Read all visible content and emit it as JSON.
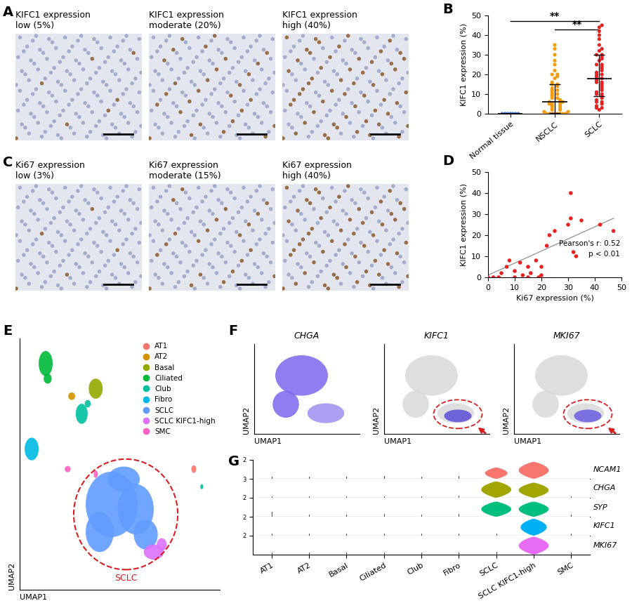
{
  "chart_data": [
    {
      "panel": "A",
      "type": "image",
      "images": [
        {
          "title_lines": [
            "KIFC1 expression",
            "low (5%)"
          ],
          "stain_percent": 5
        },
        {
          "title_lines": [
            "KIFC1 expression",
            "moderate (20%)"
          ],
          "stain_percent": 20
        },
        {
          "title_lines": [
            "KIFC1 expression",
            "high (40%)"
          ],
          "stain_percent": 40
        }
      ]
    },
    {
      "panel": "B",
      "type": "dot",
      "categories": [
        "Normal tissue",
        "NSCLC",
        "SCLC"
      ],
      "colors": [
        "#4a7cd9",
        "#f39c12",
        "#e8221f"
      ],
      "values": [
        [
          0,
          0,
          0,
          0,
          0,
          0,
          0
        ],
        [
          0,
          0,
          0,
          0,
          0,
          0,
          0,
          0,
          1,
          1,
          2,
          2,
          3,
          3,
          4,
          4,
          5,
          5,
          5,
          6,
          6,
          6,
          7,
          8,
          8,
          9,
          10,
          10,
          11,
          12,
          12,
          13,
          14,
          15,
          15,
          16,
          18,
          19,
          20,
          20,
          22,
          25,
          27,
          30,
          33,
          35
        ],
        [
          2,
          3,
          3,
          4,
          5,
          6,
          6,
          7,
          8,
          9,
          10,
          10,
          11,
          12,
          13,
          14,
          15,
          16,
          16,
          17,
          18,
          18,
          19,
          20,
          20,
          21,
          22,
          23,
          24,
          25,
          25,
          27,
          28,
          29,
          30,
          30,
          32,
          33,
          35,
          38,
          40,
          42,
          44,
          45
        ]
      ],
      "center": [
        0,
        6,
        18
      ],
      "error_low": [
        0,
        0.5,
        9
      ],
      "error_high": [
        0,
        15,
        30
      ],
      "significance": [
        {
          "pair": [
            0,
            2
          ],
          "y": 47,
          "label": "**"
        },
        {
          "pair": [
            1,
            2
          ],
          "y": 43,
          "label": "**"
        }
      ],
      "ylabel": "KIFC1 expression (%)",
      "ylim": [
        0,
        50
      ],
      "yticks": [
        0,
        10,
        20,
        30,
        40,
        50
      ]
    },
    {
      "panel": "C",
      "type": "image",
      "images": [
        {
          "title_lines": [
            "Ki67 expression",
            "low (3%)"
          ],
          "stain_percent": 3
        },
        {
          "title_lines": [
            "Ki67 expression",
            "moderate (15%)"
          ],
          "stain_percent": 15
        },
        {
          "title_lines": [
            "Ki67 expression",
            "high (40%)"
          ],
          "stain_percent": 40
        }
      ]
    },
    {
      "panel": "D",
      "type": "scatter",
      "color": "#e8221f",
      "x": [
        0,
        2,
        4,
        5,
        7,
        8,
        10,
        10,
        12,
        13,
        15,
        15,
        16,
        18,
        19,
        20,
        20,
        22,
        23,
        25,
        30,
        31,
        31,
        32,
        33,
        35,
        42,
        47
      ],
      "y": [
        0,
        0,
        0,
        2,
        5,
        8,
        3,
        0,
        7,
        1,
        0,
        5,
        2,
        8,
        0,
        1,
        5,
        15,
        20,
        22,
        25,
        40,
        28,
        12,
        10,
        27,
        25,
        22
      ],
      "fit": {
        "x": [
          0,
          47
        ],
        "y": [
          1,
          28
        ]
      },
      "annotations": [
        "Pearson's r: 0.52",
        "p < 0.01"
      ],
      "xlabel": "Ki67 expression (%)",
      "ylabel": "KIFC1 expression (%)",
      "xlim": [
        0,
        50
      ],
      "xticks": [
        0,
        10,
        20,
        30,
        40,
        50
      ],
      "ylim": [
        0,
        50
      ],
      "yticks": [
        0,
        10,
        20,
        30,
        40,
        50
      ]
    },
    {
      "panel": "E",
      "type": "umap",
      "xlabel": "UMAP1",
      "ylabel": "UMAP2",
      "tick_labels": false,
      "xlim": [
        0,
        10
      ],
      "ylim": [
        0,
        10
      ],
      "legend": "upper right",
      "series": [
        {
          "name": "AT1",
          "color": "#F8766D",
          "ellipses": [
            [
              8.7,
              4.8,
              0.25,
              0.3
            ]
          ]
        },
        {
          "name": "AT2",
          "color": "#D39200",
          "ellipses": [
            [
              2.6,
              7.7,
              0.35,
              0.3
            ]
          ]
        },
        {
          "name": "Basal",
          "color": "#93AA00",
          "ellipses": [
            [
              3.8,
              8.0,
              0.7,
              0.8
            ]
          ]
        },
        {
          "name": "Ciliated",
          "color": "#00BA38",
          "ellipses": [
            [
              1.3,
              9.0,
              0.7,
              1.0
            ],
            [
              1.4,
              8.4,
              0.4,
              0.4
            ]
          ]
        },
        {
          "name": "Club",
          "color": "#00C19F",
          "ellipses": [
            [
              3.1,
              7.0,
              0.6,
              0.8
            ],
            [
              3.4,
              7.4,
              0.3,
              0.3
            ],
            [
              9.1,
              4.1,
              0.15,
              0.2
            ]
          ]
        },
        {
          "name": "Fibro",
          "color": "#00B9E3",
          "ellipses": [
            [
              0.6,
              5.6,
              0.7,
              0.9
            ]
          ]
        },
        {
          "name": "SCLC",
          "color": "#619CFF",
          "ellipses": [
            [
              4.6,
              3.4,
              2.6,
              2.6
            ],
            [
              5.8,
              3.2,
              1.8,
              2.0
            ],
            [
              4.0,
              2.3,
              1.4,
              1.6
            ],
            [
              6.3,
              2.2,
              1.2,
              1.2
            ],
            [
              5.2,
              4.4,
              1.6,
              1.0
            ]
          ]
        },
        {
          "name": "SCLC KIFC1-high",
          "color": "#DB72FB",
          "ellipses": [
            [
              6.7,
              1.5,
              1.0,
              0.6
            ],
            [
              7.1,
              1.8,
              0.5,
              0.5
            ]
          ]
        },
        {
          "name": "SMC",
          "color": "#FF61C3",
          "ellipses": [
            [
              2.4,
              4.8,
              0.3,
              0.25
            ],
            [
              3.8,
              4.6,
              0.2,
              0.3
            ]
          ]
        }
      ],
      "highlight": {
        "center": [
          5.3,
          3.0
        ],
        "width": 5.2,
        "height": 4.4,
        "label": "SCLC"
      }
    },
    {
      "panel": "F",
      "type": "umap_feature",
      "xlabel": "UMAP1",
      "ylabel": "UMAP2",
      "tick_labels": false,
      "xlim": [
        0,
        10
      ],
      "ylim": [
        0,
        10
      ],
      "plots": [
        {
          "title": "CHGA",
          "regions": [
            {
              "ellipse": [
                4.5,
                6.5,
                5.0,
                4.5
              ],
              "color": "#7B68EE"
            },
            {
              "ellipse": [
                3.0,
                3.3,
                2.5,
                3.0
              ],
              "color": "#7B68EE"
            },
            {
              "ellipse": [
                6.8,
                2.3,
                3.5,
                2.2
              ],
              "color": "#9d8ff0"
            }
          ]
        },
        {
          "title": "KIFC1",
          "regions": [
            {
              "ellipse": [
                4.5,
                6.5,
                5.0,
                4.5
              ],
              "color": "#d9d9d9"
            },
            {
              "ellipse": [
                3.0,
                3.3,
                2.5,
                3.0
              ],
              "color": "#d9d9d9"
            },
            {
              "ellipse": [
                6.8,
                2.3,
                3.5,
                2.2
              ],
              "color": "#d9d9d9"
            },
            {
              "ellipse": [
                7.0,
                2.0,
                2.6,
                1.4
              ],
              "color": "#5b4ed6"
            }
          ],
          "highlight": {
            "center": [
              7.0,
              2.2
            ],
            "width": 4.6,
            "height": 3.2
          }
        },
        {
          "title": "MKI67",
          "regions": [
            {
              "ellipse": [
                4.5,
                6.5,
                5.0,
                4.5
              ],
              "color": "#d9d9d9"
            },
            {
              "ellipse": [
                3.0,
                3.3,
                2.5,
                3.0
              ],
              "color": "#d9d9d9"
            },
            {
              "ellipse": [
                6.8,
                2.3,
                3.5,
                2.2
              ],
              "color": "#d9d9d9"
            },
            {
              "ellipse": [
                7.0,
                2.0,
                2.6,
                1.4
              ],
              "color": "#6a5de0"
            }
          ],
          "highlight": {
            "center": [
              7.0,
              2.2
            ],
            "width": 4.6,
            "height": 3.2
          }
        }
      ]
    },
    {
      "panel": "G",
      "type": "violin",
      "categories": [
        "AT1",
        "AT2",
        "Basal",
        "Ciliated",
        "Club",
        "Fibro",
        "SCLC",
        "SCLC KIFC1-high",
        "SMC"
      ],
      "rows": [
        {
          "name": "NCAM1",
          "color": "#F8766D",
          "ylim": [
            0,
            2
          ],
          "yticks": [
            2
          ],
          "levels": [
            0.2,
            0.2,
            0.2,
            0.3,
            0.2,
            0.3,
            1.2,
            1.8,
            0.0
          ],
          "widths": [
            0.02,
            0.02,
            0.02,
            0.02,
            0.02,
            0.02,
            0.6,
            0.8,
            0.02
          ]
        },
        {
          "name": "CHGA",
          "color": "#A3A500",
          "ylim": [
            0,
            3
          ],
          "yticks": [
            3
          ],
          "levels": [
            0.2,
            0.2,
            0.2,
            0.2,
            0.2,
            0.3,
            2.6,
            2.4,
            0.2
          ],
          "widths": [
            0.02,
            0.02,
            0.02,
            0.02,
            0.02,
            0.02,
            0.8,
            0.8,
            0.02
          ]
        },
        {
          "name": "SYP",
          "color": "#00BF7D",
          "ylim": [
            0,
            2
          ],
          "yticks": [
            2
          ],
          "levels": [
            0.5,
            0.2,
            0.2,
            0.3,
            0.2,
            0.3,
            1.6,
            1.6,
            0.2
          ],
          "widths": [
            0.02,
            0.02,
            0.02,
            0.02,
            0.02,
            0.02,
            0.8,
            0.8,
            0.02
          ]
        },
        {
          "name": "KIFC1",
          "color": "#00B0F6",
          "ylim": [
            0,
            2
          ],
          "yticks": [
            2
          ],
          "levels": [
            0.2,
            0.2,
            0.2,
            0.2,
            0.2,
            0.2,
            0.2,
            1.8,
            0.2
          ],
          "widths": [
            0.02,
            0.02,
            0.02,
            0.02,
            0.02,
            0.02,
            0.02,
            0.7,
            0.02
          ]
        },
        {
          "name": "MKI67",
          "color": "#E76BF3",
          "ylim": [
            0,
            2
          ],
          "yticks": [
            2
          ],
          "levels": [
            0.2,
            0.2,
            0.2,
            0.2,
            0.2,
            0.2,
            0.3,
            1.9,
            0.2
          ],
          "widths": [
            0.02,
            0.02,
            0.02,
            0.02,
            0.02,
            0.02,
            0.02,
            0.8,
            0.02
          ]
        }
      ]
    }
  ]
}
